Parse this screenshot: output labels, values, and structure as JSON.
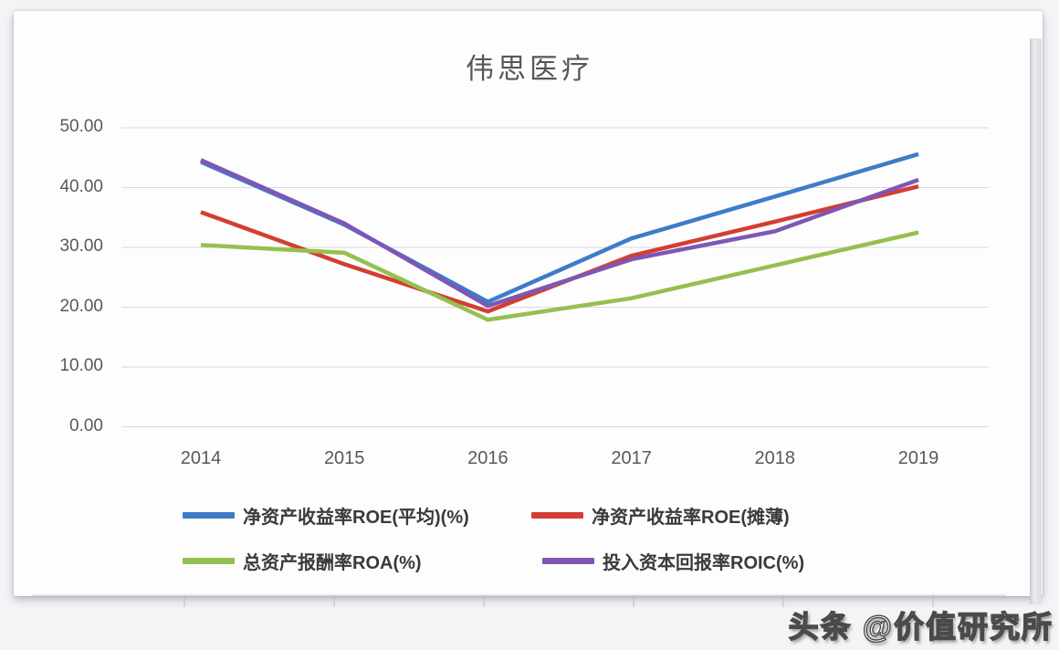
{
  "title": "伟思医疗",
  "watermark": "头条 @价值研究所",
  "chart_data": {
    "type": "line",
    "title": "伟思医疗",
    "categories": [
      "2014",
      "2015",
      "2016",
      "2017",
      "2018",
      "2019"
    ],
    "series": [
      {
        "name": "净资产收益率ROE(平均)(%)",
        "color": "#3e7cc7",
        "values": [
          44.3,
          33.8,
          20.9,
          31.5,
          38.5,
          45.6
        ]
      },
      {
        "name": "净资产收益率ROE(摊薄)",
        "color": "#d23f31",
        "values": [
          35.9,
          27.2,
          19.3,
          28.6,
          34.3,
          40.2
        ]
      },
      {
        "name": "总资产报酬率ROA(%)",
        "color": "#94c04f",
        "values": [
          30.4,
          29.1,
          17.9,
          21.5,
          27.0,
          32.5
        ]
      },
      {
        "name": "投入资本回报率ROIC(%)",
        "color": "#7e57b5",
        "values": [
          44.6,
          34.0,
          20.2,
          28.0,
          32.7,
          41.3
        ]
      }
    ],
    "ylim": [
      0,
      50
    ],
    "ytick_step": 10,
    "ytick_labels": [
      "0.00",
      "10.00",
      "20.00",
      "30.00",
      "40.00",
      "50.00"
    ],
    "grid": true,
    "legend_position": "bottom"
  }
}
